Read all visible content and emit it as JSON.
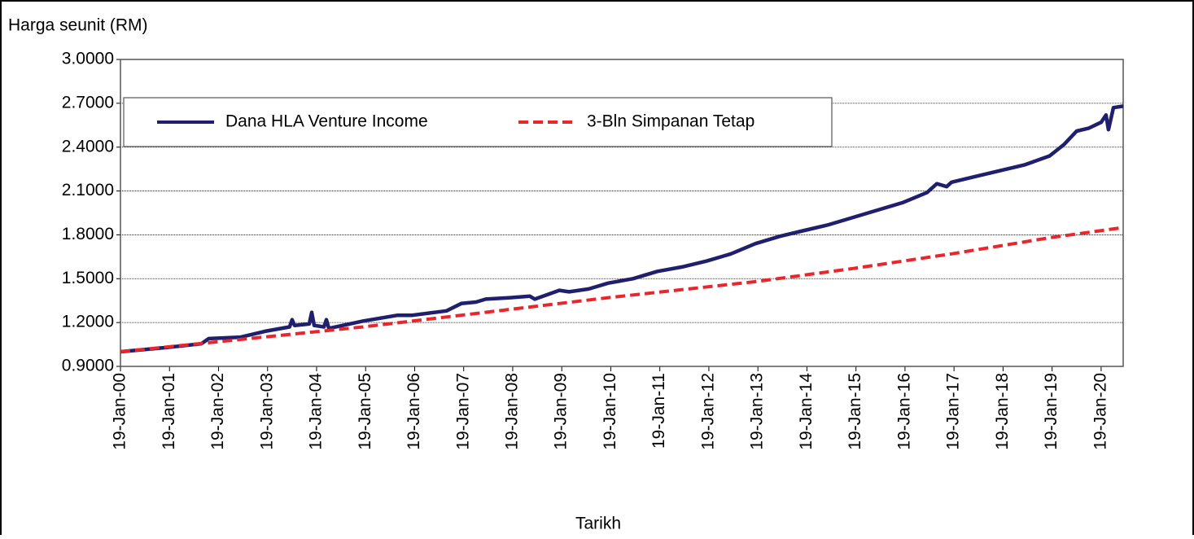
{
  "chart_data": {
    "type": "line",
    "y_axis_label": "Harga seunit (RM)",
    "x_axis_label": "Tarikh",
    "xlim": [
      2000.05,
      2020.5
    ],
    "xticks": [
      {
        "value": 2000.05,
        "label": "19-Jan-00"
      },
      {
        "value": 2001.05,
        "label": "19-Jan-01"
      },
      {
        "value": 2002.05,
        "label": "19-Jan-02"
      },
      {
        "value": 2003.05,
        "label": "19-Jan-03"
      },
      {
        "value": 2004.05,
        "label": "19-Jan-04"
      },
      {
        "value": 2005.05,
        "label": "19-Jan-05"
      },
      {
        "value": 2006.05,
        "label": "19-Jan-06"
      },
      {
        "value": 2007.05,
        "label": "19-Jan-07"
      },
      {
        "value": 2008.05,
        "label": "19-Jan-08"
      },
      {
        "value": 2009.05,
        "label": "19-Jan-09"
      },
      {
        "value": 2010.05,
        "label": "19-Jan-10"
      },
      {
        "value": 2011.05,
        "label": "19-Jan-11"
      },
      {
        "value": 2012.05,
        "label": "19-Jan-12"
      },
      {
        "value": 2013.05,
        "label": "19-Jan-13"
      },
      {
        "value": 2014.05,
        "label": "19-Jan-14"
      },
      {
        "value": 2015.05,
        "label": "19-Jan-15"
      },
      {
        "value": 2016.05,
        "label": "19-Jan-16"
      },
      {
        "value": 2017.05,
        "label": "19-Jan-17"
      },
      {
        "value": 2018.05,
        "label": "19-Jan-18"
      },
      {
        "value": 2019.05,
        "label": "19-Jan-19"
      },
      {
        "value": 2020.05,
        "label": "19-Jan-20"
      }
    ],
    "ylim": [
      0.9,
      3.0
    ],
    "yticks": [
      {
        "value": 0.9,
        "label": "0.9000"
      },
      {
        "value": 1.2,
        "label": "1.2000"
      },
      {
        "value": 1.5,
        "label": "1.5000"
      },
      {
        "value": 1.8,
        "label": "1.8000"
      },
      {
        "value": 2.1,
        "label": "2.1000"
      },
      {
        "value": 2.4,
        "label": "2.4000"
      },
      {
        "value": 2.7,
        "label": "2.7000"
      },
      {
        "value": 3.0,
        "label": "3.0000"
      }
    ],
    "grid": true,
    "series": [
      {
        "name": "Dana HLA Venture Income",
        "color": "#1f1f6e",
        "dash": false,
        "x": [
          2000.05,
          2001.0,
          2001.7,
          2001.85,
          2002.5,
          2003.0,
          2003.5,
          2003.55,
          2003.6,
          2003.9,
          2003.95,
          2004.0,
          2004.2,
          2004.25,
          2004.3,
          2005.0,
          2005.7,
          2006.0,
          2006.7,
          2007.0,
          2007.3,
          2007.5,
          2008.0,
          2008.4,
          2008.5,
          2009.0,
          2009.2,
          2009.6,
          2010.0,
          2010.5,
          2011.0,
          2011.5,
          2012.0,
          2012.5,
          2013.0,
          2013.5,
          2014.0,
          2014.5,
          2015.0,
          2015.5,
          2016.0,
          2016.5,
          2016.7,
          2016.9,
          2017.0,
          2017.5,
          2018.0,
          2018.5,
          2019.0,
          2019.3,
          2019.55,
          2019.8,
          2020.05,
          2020.15,
          2020.2,
          2020.3,
          2020.5
        ],
        "values": [
          1.0,
          1.03,
          1.055,
          1.09,
          1.1,
          1.14,
          1.17,
          1.22,
          1.18,
          1.19,
          1.27,
          1.18,
          1.17,
          1.22,
          1.16,
          1.21,
          1.25,
          1.25,
          1.28,
          1.33,
          1.34,
          1.36,
          1.37,
          1.38,
          1.36,
          1.42,
          1.41,
          1.43,
          1.47,
          1.5,
          1.55,
          1.58,
          1.62,
          1.67,
          1.74,
          1.79,
          1.83,
          1.87,
          1.92,
          1.97,
          2.02,
          2.09,
          2.15,
          2.13,
          2.16,
          2.2,
          2.24,
          2.28,
          2.34,
          2.42,
          2.51,
          2.53,
          2.57,
          2.62,
          2.52,
          2.67,
          2.68
        ]
      },
      {
        "name": "3-Bln Simpanan Tetap",
        "color": "#e8262b",
        "dash": true,
        "x": [
          2000.05,
          2005.0,
          2010.0,
          2013.0,
          2015.0,
          2017.0,
          2019.0,
          2020.5
        ],
        "values": [
          1.0,
          1.17,
          1.37,
          1.48,
          1.57,
          1.67,
          1.78,
          1.85
        ]
      }
    ]
  }
}
